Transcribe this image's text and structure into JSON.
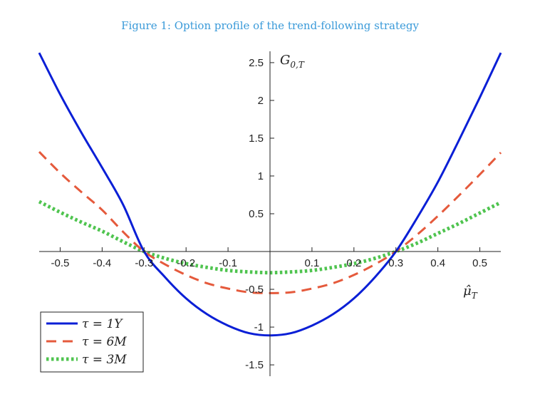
{
  "figure": {
    "title": "Figure 1: Option profile of the trend-following strategy"
  },
  "chart_data": {
    "type": "line",
    "title": "Figure 1: Option profile of the trend-following strategy",
    "xlabel": "μ̂",
    "xlabel_sub": "T",
    "ylabel": "G",
    "ylabel_sub": "0,T",
    "xlim": [
      -0.55,
      0.55
    ],
    "ylim": [
      -1.65,
      2.65
    ],
    "xticks": [
      -0.5,
      -0.4,
      -0.3,
      -0.2,
      -0.1,
      0.1,
      0.2,
      0.3,
      0.4,
      0.5
    ],
    "xtick_labels": [
      "-0.5",
      "-0.4",
      "-0.3",
      "-0.2",
      "-0.1",
      "0.1",
      "0.2",
      "0.3",
      "0.4",
      "0.5"
    ],
    "yticks": [
      -1.5,
      -1,
      -0.5,
      0.5,
      1,
      1.5,
      2,
      2.5
    ],
    "ytick_labels": [
      "-1.5",
      "-1",
      "-0.5",
      "0.5",
      "1",
      "1.5",
      "2",
      "2.5"
    ],
    "grid": false,
    "legend_position": "bottom-left",
    "series": [
      {
        "name": "τ = 1Y",
        "label_lhs": "τ",
        "label_rhs": "= 1Y",
        "style": "solid",
        "color": "#0a1fd6",
        "x": [
          -0.55,
          -0.5,
          -0.45,
          -0.4,
          -0.35,
          -0.3,
          -0.25,
          -0.2,
          -0.15,
          -0.1,
          -0.05,
          0,
          0.05,
          0.1,
          0.15,
          0.2,
          0.25,
          0.3,
          0.35,
          0.4,
          0.45,
          0.5,
          0.55
        ],
        "values": [
          2.63,
          2.08,
          1.58,
          1.11,
          0.62,
          0.0,
          -0.34,
          -0.62,
          -0.83,
          -0.98,
          -1.08,
          -1.11,
          -1.08,
          -0.98,
          -0.83,
          -0.62,
          -0.34,
          0.0,
          0.44,
          0.92,
          1.47,
          2.04,
          2.63
        ]
      },
      {
        "name": "τ = 6M",
        "label_lhs": "τ",
        "label_rhs": "= 6M",
        "style": "dashed",
        "color": "#e55a3c",
        "x": [
          -0.55,
          -0.5,
          -0.45,
          -0.4,
          -0.35,
          -0.3,
          -0.25,
          -0.2,
          -0.15,
          -0.1,
          -0.05,
          0,
          0.05,
          0.1,
          0.15,
          0.2,
          0.25,
          0.3,
          0.35,
          0.4,
          0.45,
          0.5,
          0.55
        ],
        "values": [
          1.32,
          1.04,
          0.79,
          0.55,
          0.26,
          0.0,
          -0.17,
          -0.31,
          -0.42,
          -0.49,
          -0.54,
          -0.55,
          -0.54,
          -0.49,
          -0.42,
          -0.31,
          -0.17,
          0.0,
          0.22,
          0.47,
          0.74,
          1.02,
          1.31
        ]
      },
      {
        "name": "τ = 3M",
        "label_lhs": "τ",
        "label_rhs": "= 3M",
        "style": "dotted",
        "color": "#4fc44f",
        "x": [
          -0.55,
          -0.5,
          -0.45,
          -0.4,
          -0.35,
          -0.3,
          -0.25,
          -0.2,
          -0.15,
          -0.1,
          -0.05,
          0,
          0.05,
          0.1,
          0.15,
          0.2,
          0.25,
          0.3,
          0.35,
          0.4,
          0.45,
          0.5,
          0.55
        ],
        "values": [
          0.66,
          0.52,
          0.39,
          0.27,
          0.13,
          0.0,
          -0.09,
          -0.16,
          -0.21,
          -0.25,
          -0.27,
          -0.28,
          -0.27,
          -0.25,
          -0.21,
          -0.16,
          -0.09,
          0.0,
          0.11,
          0.24,
          0.37,
          0.51,
          0.65
        ]
      }
    ]
  }
}
